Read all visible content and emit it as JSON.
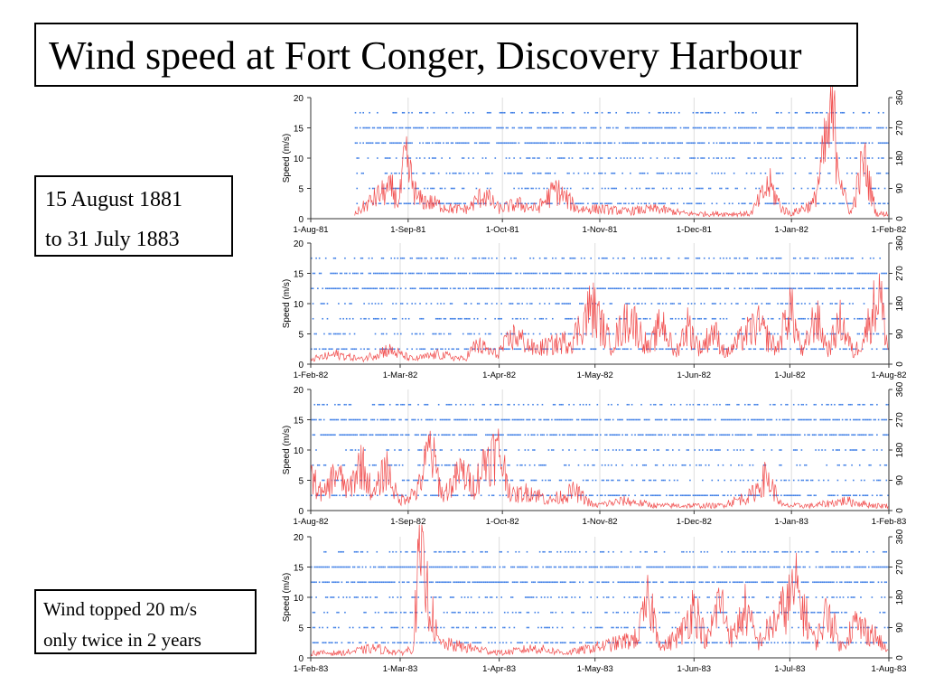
{
  "title": "Wind speed at Fort Conger, Discovery Harbour",
  "date_range": {
    "line1": "15 August 1881",
    "line2": "to 31 July 1883"
  },
  "note": {
    "line1": "Wind topped 20 m/s",
    "line2": "only twice in 2 years"
  },
  "colors": {
    "speed": "#ef3b3b",
    "direction": "#3f7fe6",
    "axis": "#333333",
    "grid": "#dddddd"
  },
  "chart_data": [
    {
      "type": "line",
      "x_ticks": [
        "1-Aug-81",
        "1-Sep-81",
        "1-Oct-81",
        "1-Nov-81",
        "1-Dec-81",
        "1-Jan-82",
        "1-Feb-82"
      ],
      "x_tick_days": [
        0,
        31,
        61,
        92,
        122,
        153,
        184
      ],
      "ylabel": "Speed (m/s)",
      "ylim": [
        0,
        20
      ],
      "y_ticks": [
        0,
        5,
        10,
        15,
        20
      ],
      "y2lim": [
        0,
        360
      ],
      "y2_ticks": [
        0,
        90,
        180,
        270,
        360
      ],
      "data_start_day": 14,
      "series": [
        {
          "kind": "speed",
          "x_days": [
            14,
            18,
            22,
            26,
            28,
            30,
            34,
            40,
            45,
            50,
            55,
            60,
            66,
            72,
            78,
            85,
            92,
            100,
            110,
            120,
            130,
            140,
            146,
            150,
            153,
            156,
            160,
            166,
            170,
            172,
            176,
            180,
            184
          ],
          "values": [
            1,
            3,
            5,
            6,
            3,
            12,
            4,
            3,
            2,
            2,
            5,
            2,
            3,
            2,
            6,
            2,
            2,
            1.5,
            2,
            1,
            1,
            1,
            7,
            2,
            1,
            2,
            3,
            21,
            4,
            1,
            12,
            1,
            1
          ]
        },
        {
          "kind": "direction",
          "levels": [
            45,
            90,
            135,
            180,
            225,
            270,
            315
          ]
        }
      ]
    },
    {
      "type": "line",
      "x_ticks": [
        "1-Feb-82",
        "1-Mar-82",
        "1-Apr-82",
        "1-May-82",
        "1-Jun-82",
        "1-Jul-82",
        "1-Aug-82"
      ],
      "x_tick_days": [
        0,
        28,
        59,
        89,
        120,
        150,
        181
      ],
      "ylabel": "Speed (m/s)",
      "ylim": [
        0,
        20
      ],
      "y_ticks": [
        0,
        5,
        10,
        15,
        20
      ],
      "y2lim": [
        0,
        360
      ],
      "y2_ticks": [
        0,
        90,
        180,
        270,
        360
      ],
      "data_start_day": 0,
      "series": [
        {
          "kind": "speed",
          "x_days": [
            0,
            8,
            16,
            24,
            32,
            40,
            48,
            52,
            58,
            64,
            70,
            76,
            82,
            88,
            94,
            100,
            106,
            110,
            114,
            118,
            122,
            126,
            130,
            136,
            140,
            146,
            150,
            154,
            158,
            162,
            166,
            170,
            174,
            178,
            181
          ],
          "values": [
            1,
            2,
            1,
            3,
            1,
            2,
            1,
            4,
            2,
            6,
            3,
            4,
            5,
            12,
            4,
            10,
            3,
            9,
            2,
            8,
            3,
            7,
            2,
            6,
            8,
            3,
            12,
            2,
            10,
            3,
            9,
            2,
            7,
            15,
            2
          ]
        },
        {
          "kind": "direction",
          "levels": [
            45,
            90,
            135,
            180,
            225,
            270,
            315
          ]
        }
      ]
    },
    {
      "type": "line",
      "x_ticks": [
        "1-Aug-82",
        "1-Sep-82",
        "1-Oct-82",
        "1-Nov-82",
        "1-Dec-82",
        "1-Jan-83",
        "1-Feb-83"
      ],
      "x_tick_days": [
        0,
        31,
        61,
        92,
        122,
        153,
        184
      ],
      "ylabel": "Speed (m/s)",
      "ylim": [
        0,
        20
      ],
      "y_ticks": [
        0,
        5,
        10,
        15,
        20
      ],
      "y2lim": [
        0,
        360
      ],
      "y2_ticks": [
        0,
        90,
        180,
        270,
        360
      ],
      "data_start_day": 0,
      "series": [
        {
          "kind": "speed",
          "x_days": [
            0,
            4,
            8,
            12,
            16,
            20,
            24,
            28,
            34,
            38,
            42,
            48,
            52,
            56,
            60,
            64,
            70,
            76,
            84,
            90,
            100,
            110,
            120,
            130,
            140,
            145,
            150,
            160,
            170,
            180,
            184
          ],
          "values": [
            7,
            3,
            8,
            4,
            10,
            3,
            9,
            2,
            4,
            13,
            3,
            8,
            5,
            11,
            12,
            3,
            4,
            2,
            4,
            1,
            2,
            1,
            1,
            1,
            3,
            7,
            1,
            1,
            2,
            1,
            1
          ]
        },
        {
          "kind": "direction",
          "levels": [
            45,
            90,
            135,
            180,
            225,
            270,
            315
          ]
        }
      ]
    },
    {
      "type": "line",
      "x_ticks": [
        "1-Feb-83",
        "1-Mar-83",
        "1-Apr-83",
        "1-May-83",
        "1-Jun-83",
        "1-Jul-83",
        "1-Aug-83"
      ],
      "x_tick_days": [
        0,
        28,
        59,
        89,
        120,
        150,
        181
      ],
      "ylabel": "Speed (m/s)",
      "ylim": [
        0,
        20
      ],
      "y_ticks": [
        0,
        5,
        10,
        15,
        20
      ],
      "y2lim": [
        0,
        360
      ],
      "y2_ticks": [
        0,
        90,
        180,
        270,
        360
      ],
      "data_start_day": 0,
      "series": [
        {
          "kind": "speed",
          "x_days": [
            0,
            10,
            20,
            28,
            32,
            34,
            40,
            50,
            60,
            70,
            80,
            88,
            96,
            102,
            106,
            110,
            116,
            120,
            124,
            128,
            132,
            136,
            140,
            146,
            152,
            158,
            162,
            166,
            170,
            176,
            181
          ],
          "values": [
            1,
            1,
            2,
            1,
            2,
            21,
            3,
            2,
            1,
            2,
            1,
            2,
            3,
            4,
            12,
            2,
            5,
            11,
            3,
            12,
            4,
            10,
            3,
            8,
            14,
            3,
            10,
            2,
            7,
            5,
            1
          ]
        },
        {
          "kind": "direction",
          "levels": [
            45,
            90,
            135,
            180,
            225,
            270,
            315
          ]
        }
      ]
    }
  ]
}
